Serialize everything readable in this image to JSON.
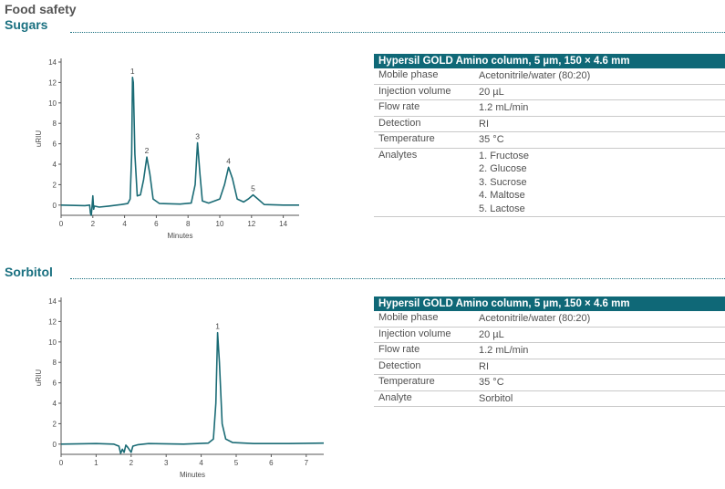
{
  "header": {
    "category": "Food safety"
  },
  "sections": [
    {
      "title": "Sugars",
      "table": {
        "header": "Hypersil GOLD Amino column, 5 µm, 150 × 4.6 mm",
        "rows": [
          {
            "key": "Mobile phase",
            "values": [
              "Acetonitrile/water (80:20)"
            ]
          },
          {
            "key": "Injection volume",
            "values": [
              "20 µL"
            ]
          },
          {
            "key": "Flow rate",
            "values": [
              "1.2 mL/min"
            ]
          },
          {
            "key": "Detection",
            "values": [
              "RI"
            ]
          },
          {
            "key": "Temperature",
            "values": [
              "35 °C"
            ]
          },
          {
            "key": "Analytes",
            "values": [
              "1. Fructose",
              "2. Glucose",
              "3. Sucrose",
              "4. Maltose",
              "5. Lactose"
            ]
          }
        ]
      }
    },
    {
      "title": "Sorbitol",
      "table": {
        "header": "Hypersil GOLD Amino column, 5 µm, 150 × 4.6 mm",
        "rows": [
          {
            "key": "Mobile phase",
            "values": [
              "Acetonitrile/water (80:20)"
            ]
          },
          {
            "key": "Injection volume",
            "values": [
              "20 µL"
            ]
          },
          {
            "key": "Flow rate",
            "values": [
              "1.2 mL/min"
            ]
          },
          {
            "key": "Detection",
            "values": [
              "RI"
            ]
          },
          {
            "key": "Temperature",
            "values": [
              "35 °C"
            ]
          },
          {
            "key": "Analyte",
            "values": [
              "Sorbitol"
            ]
          }
        ]
      }
    }
  ],
  "chart_data": [
    {
      "type": "line",
      "title": "",
      "xlabel": "Minutes",
      "ylabel": "uRIU",
      "xlim": [
        0,
        15
      ],
      "ylim": [
        -1,
        14
      ],
      "xticks": [
        0,
        2,
        4,
        6,
        8,
        10,
        12,
        14
      ],
      "yticks": [
        0,
        2,
        4,
        6,
        8,
        10,
        12,
        14
      ],
      "grid": false,
      "line_color": "#1a6b75",
      "series": [
        {
          "points": [
            [
              0,
              0
            ],
            [
              1.5,
              -0.05
            ],
            [
              1.8,
              0
            ],
            [
              1.85,
              -0.8
            ],
            [
              1.9,
              -1
            ],
            [
              1.95,
              -0.2
            ],
            [
              2.0,
              0.9
            ],
            [
              2.05,
              -0.4
            ],
            [
              2.1,
              -0.1
            ],
            [
              2.4,
              -0.2
            ],
            [
              3.0,
              -0.1
            ],
            [
              3.8,
              0.05
            ],
            [
              4.2,
              0.15
            ],
            [
              4.35,
              0.6
            ],
            [
              4.45,
              5
            ],
            [
              4.5,
              12.5
            ],
            [
              4.55,
              12
            ],
            [
              4.65,
              5
            ],
            [
              4.8,
              0.9
            ],
            [
              5.0,
              1
            ],
            [
              5.2,
              2.5
            ],
            [
              5.4,
              4.7
            ],
            [
              5.6,
              3
            ],
            [
              5.8,
              0.6
            ],
            [
              6.2,
              0.15
            ],
            [
              7.5,
              0.1
            ],
            [
              8.2,
              0.2
            ],
            [
              8.45,
              2
            ],
            [
              8.6,
              6.1
            ],
            [
              8.75,
              3
            ],
            [
              8.9,
              0.4
            ],
            [
              9.3,
              0.2
            ],
            [
              10.0,
              0.6
            ],
            [
              10.3,
              2
            ],
            [
              10.55,
              3.7
            ],
            [
              10.8,
              2.6
            ],
            [
              11.1,
              0.6
            ],
            [
              11.5,
              0.3
            ],
            [
              11.8,
              0.6
            ],
            [
              12.1,
              1
            ],
            [
              12.4,
              0.6
            ],
            [
              12.8,
              0.05
            ],
            [
              14,
              0
            ],
            [
              15,
              0
            ]
          ]
        }
      ],
      "peaks": [
        {
          "label": "1",
          "x": 4.5,
          "y": 12.5
        },
        {
          "label": "2",
          "x": 5.4,
          "y": 4.7
        },
        {
          "label": "3",
          "x": 8.6,
          "y": 6.1
        },
        {
          "label": "4",
          "x": 10.55,
          "y": 3.7
        },
        {
          "label": "5",
          "x": 12.1,
          "y": 1.0
        }
      ]
    },
    {
      "type": "line",
      "title": "",
      "xlabel": "Minutes",
      "ylabel": "uRIU",
      "xlim": [
        0,
        7.5
      ],
      "ylim": [
        -1,
        14
      ],
      "xticks": [
        0,
        1,
        2,
        3,
        4,
        5,
        6,
        7
      ],
      "yticks": [
        0,
        2,
        4,
        6,
        8,
        10,
        12,
        14
      ],
      "grid": false,
      "line_color": "#1a6b75",
      "series": [
        {
          "points": [
            [
              0,
              0
            ],
            [
              1.0,
              0.05
            ],
            [
              1.5,
              0
            ],
            [
              1.65,
              -0.2
            ],
            [
              1.7,
              -0.9
            ],
            [
              1.75,
              -0.5
            ],
            [
              1.8,
              -0.8
            ],
            [
              1.85,
              -0.1
            ],
            [
              1.9,
              -0.3
            ],
            [
              2.0,
              -0.8
            ],
            [
              2.05,
              -0.2
            ],
            [
              2.2,
              -0.05
            ],
            [
              2.5,
              0.05
            ],
            [
              3.5,
              0
            ],
            [
              4.2,
              0.1
            ],
            [
              4.35,
              0.5
            ],
            [
              4.42,
              4
            ],
            [
              4.47,
              10.9
            ],
            [
              4.52,
              8
            ],
            [
              4.6,
              2
            ],
            [
              4.7,
              0.5
            ],
            [
              4.9,
              0.15
            ],
            [
              5.5,
              0.05
            ],
            [
              6.5,
              0.05
            ],
            [
              7.5,
              0.1
            ]
          ]
        }
      ],
      "peaks": [
        {
          "label": "1",
          "x": 4.47,
          "y": 10.9
        }
      ]
    }
  ]
}
